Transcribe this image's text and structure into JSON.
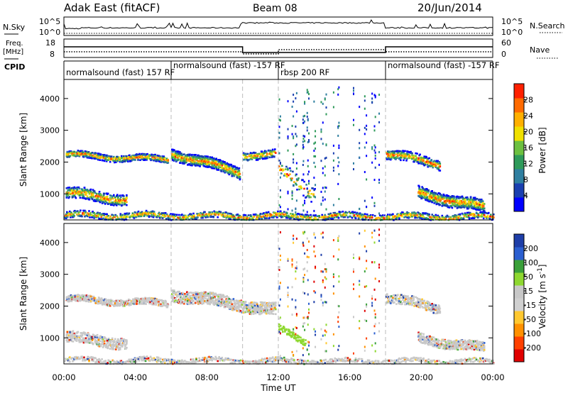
{
  "header": {
    "station": "Adak East (fitACF)",
    "beam": "Beam 08",
    "date": "20/Jun/2014"
  },
  "left_labels": {
    "nsky": "N.Sky",
    "freq_top": "Freq.",
    "freq_unit": "[MHz]",
    "cpid": "CPID"
  },
  "right_labels": {
    "nsearch": "N.Search",
    "nave": "Nave"
  },
  "colors": {
    "power": [
      "#0000ff",
      "#1a3fb0",
      "#2f7fa0",
      "#2e9a5a",
      "#6cc040",
      "#f0e000",
      "#ffb000",
      "#ff6a00",
      "#ff2000"
    ],
    "velocity": [
      "#1e3ea8",
      "#2b5fd0",
      "#3aa03a",
      "#8ed830",
      "#c8c8c8",
      "#d0d0d0",
      "#ffc830",
      "#ff9000",
      "#ff4000",
      "#e00000"
    ]
  },
  "chart_data": [
    {
      "type": "line",
      "name": "noise-panel",
      "left_ticks": [
        "10^5",
        "10^0"
      ],
      "right_ticks": [
        "10^5",
        "10^0"
      ]
    },
    {
      "type": "line",
      "name": "frequency-panel",
      "left_ticks": [
        "18",
        "8"
      ],
      "right_ticks": [
        "60",
        "0"
      ]
    },
    {
      "type": "table",
      "name": "cpid-panel",
      "segments": [
        {
          "label": "normalsound (fast) 157 RF",
          "start": 0.0
        },
        {
          "label": "normalsound (fast) -157 RF",
          "start": 6.0
        },
        {
          "label": "rbsp 200 RF",
          "start": 12.0
        },
        {
          "label": "normalsound (fast) -157 RF",
          "start": 18.0
        }
      ],
      "transition_hours": [
        6,
        10,
        12,
        18
      ]
    },
    {
      "type": "heatmap",
      "name": "power",
      "ylabel": "Slant Range [km]",
      "ylim": [
        180,
        4600
      ],
      "yticks": [
        1000,
        2000,
        3000,
        4000
      ],
      "colorbar_label": "Power [dB]",
      "colorbar_ticks": [
        "28",
        "24",
        "20",
        "16",
        "12",
        "8",
        "4"
      ]
    },
    {
      "type": "heatmap",
      "name": "velocity",
      "ylabel": "Slant Range [km]",
      "xlabel": "Time UT",
      "ylim": [
        180,
        4600
      ],
      "yticks": [
        1000,
        2000,
        3000,
        4000
      ],
      "xticks": [
        "00:00",
        "04:00",
        "08:00",
        "12:00",
        "16:00",
        "20:00",
        "00:00"
      ],
      "colorbar_label": "Velocity [m s^-1]",
      "colorbar_ticks": [
        "200",
        "100",
        "50",
        "15",
        "-15",
        "-50",
        "-100",
        "-200"
      ]
    }
  ]
}
